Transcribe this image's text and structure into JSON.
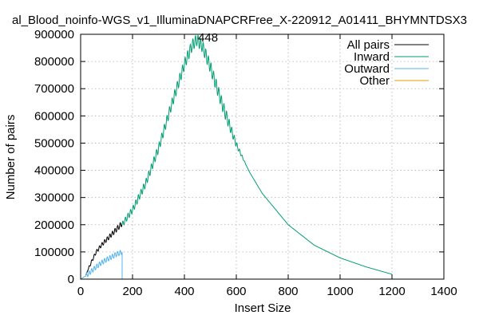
{
  "chart_data": {
    "type": "line",
    "title": "al_Blood_noinfo-WGS_v1_IlluminaDNAPCRFree_X-220912_A01411_BHYMNTDSX3",
    "xlabel": "Insert Size",
    "ylabel": "Number of pairs",
    "xlim": [
      0,
      1400
    ],
    "ylim": [
      0,
      900000
    ],
    "x_ticks": [
      "0",
      "200",
      "400",
      "600",
      "800",
      "1000",
      "1200",
      "1400"
    ],
    "y_ticks": [
      "0",
      "100000",
      "200000",
      "300000",
      "400000",
      "500000",
      "600000",
      "700000",
      "800000",
      "900000"
    ],
    "grid": true,
    "legend_position": "top-right",
    "annotations": [
      {
        "text": "448",
        "x": 448,
        "y": 880000
      }
    ],
    "series": [
      {
        "name": "All pairs",
        "color": "#000000",
        "x": [
          20,
          40,
          60,
          80,
          100,
          120,
          140,
          160
        ],
        "y": [
          15000,
          60000,
          100000,
          125000,
          145000,
          165000,
          185000,
          205000
        ]
      },
      {
        "name": "Inward",
        "color": "#009e73",
        "x": [
          160,
          200,
          250,
          300,
          350,
          400,
          430,
          448,
          470,
          500,
          550,
          600,
          650,
          700,
          800,
          900,
          1000,
          1100,
          1200
        ],
        "y": [
          200000,
          255000,
          350000,
          480000,
          640000,
          790000,
          860000,
          880000,
          855000,
          780000,
          630000,
          495000,
          395000,
          315000,
          200000,
          125000,
          78000,
          45000,
          18000
        ]
      },
      {
        "name": "Outward",
        "color": "#56b4e9",
        "x": [
          0,
          20,
          40,
          60,
          80,
          100,
          120,
          140,
          160
        ],
        "y": [
          0,
          12000,
          28000,
          45000,
          60000,
          72000,
          82000,
          92000,
          100000
        ]
      },
      {
        "name": "Other",
        "color": "#e69f00",
        "x": [],
        "y": []
      }
    ]
  }
}
